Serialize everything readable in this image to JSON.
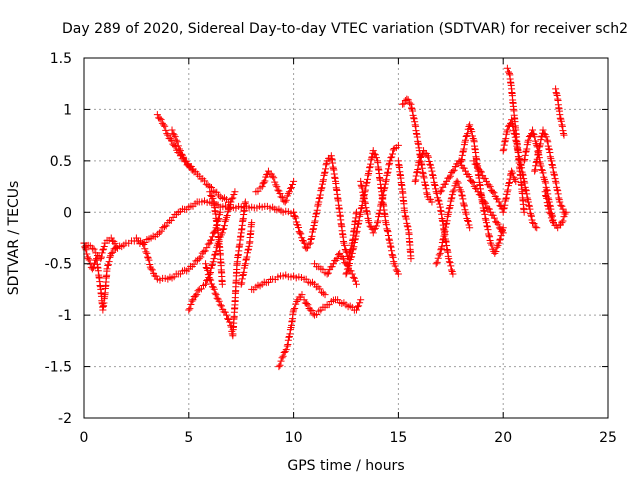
{
  "chart_data": {
    "type": "scatter",
    "title": "Day 289 of 2020, Sidereal Day-to-day VTEC variation (SDTVAR) for receiver sch2",
    "xlabel": "GPS time / hours",
    "ylabel": "SDTVAR / TECUs",
    "xlim": [
      0,
      25
    ],
    "ylim": [
      -2,
      1.5
    ],
    "x_ticks": [
      0,
      5,
      10,
      15,
      20,
      25
    ],
    "x_tick_labels": [
      "0",
      "5",
      "10",
      "15",
      "20",
      "25"
    ],
    "y_ticks": [
      -2,
      -1.5,
      -1,
      -0.5,
      0,
      0.5,
      1,
      1.5
    ],
    "y_tick_labels": [
      "-2",
      "-1.5",
      "-1",
      "-0.5",
      "0",
      "0.5",
      "1",
      "1.5"
    ],
    "grid": true,
    "marker": "plus",
    "series_color": "#ff0000",
    "tracks": [
      {
        "name": "track-1",
        "points": [
          [
            0,
            -0.3
          ],
          [
            0.4,
            -0.35
          ],
          [
            0.8,
            -0.45
          ],
          [
            1.0,
            -0.3
          ],
          [
            1.3,
            -0.25
          ],
          [
            1.6,
            -0.35
          ],
          [
            2.0,
            -0.3
          ],
          [
            2.4,
            -0.28
          ],
          [
            2.8,
            -0.3
          ],
          [
            3.2,
            -0.25
          ],
          [
            3.6,
            -0.2
          ],
          [
            4.0,
            -0.1
          ],
          [
            4.5,
            0.0
          ],
          [
            5.0,
            0.05
          ],
          [
            5.5,
            0.1
          ],
          [
            6.0,
            0.1
          ],
          [
            6.5,
            0.05
          ],
          [
            7.0,
            0.05
          ],
          [
            7.5,
            0.05
          ],
          [
            8.0,
            0.05
          ],
          [
            8.5,
            0.05
          ],
          [
            9.0,
            0.05
          ],
          [
            9.5,
            0.0
          ],
          [
            10.0,
            0.0
          ]
        ]
      },
      {
        "name": "track-2",
        "points": [
          [
            0,
            -0.3
          ],
          [
            0.2,
            -0.45
          ],
          [
            0.4,
            -0.55
          ],
          [
            0.6,
            -0.45
          ],
          [
            0.8,
            -0.75
          ],
          [
            0.9,
            -0.95
          ],
          [
            1.0,
            -0.8
          ],
          [
            1.1,
            -0.55
          ],
          [
            1.3,
            -0.4
          ],
          [
            1.5,
            -0.35
          ]
        ]
      },
      {
        "name": "track-3",
        "points": [
          [
            3.5,
            0.95
          ],
          [
            3.8,
            0.85
          ],
          [
            4.0,
            0.75
          ],
          [
            4.3,
            0.65
          ],
          [
            4.6,
            0.55
          ],
          [
            5.0,
            0.45
          ],
          [
            5.5,
            0.35
          ],
          [
            6.0,
            0.25
          ],
          [
            6.5,
            0.15
          ],
          [
            7.0,
            0.1
          ]
        ]
      },
      {
        "name": "track-4",
        "points": [
          [
            4.2,
            0.8
          ],
          [
            4.4,
            0.7
          ],
          [
            4.6,
            0.6
          ],
          [
            4.8,
            0.5
          ],
          [
            5.2,
            0.42
          ]
        ]
      },
      {
        "name": "track-5",
        "points": [
          [
            2.5,
            -0.25
          ],
          [
            2.8,
            -0.3
          ],
          [
            3.0,
            -0.4
          ],
          [
            3.2,
            -0.55
          ],
          [
            3.5,
            -0.65
          ],
          [
            4.0,
            -0.65
          ],
          [
            4.5,
            -0.6
          ],
          [
            5.0,
            -0.55
          ],
          [
            5.5,
            -0.45
          ],
          [
            6.0,
            -0.3
          ],
          [
            6.3,
            -0.15
          ],
          [
            6.5,
            0.0
          ]
        ]
      },
      {
        "name": "track-6",
        "points": [
          [
            5.0,
            -0.95
          ],
          [
            5.2,
            -0.85
          ],
          [
            5.5,
            -0.75
          ],
          [
            5.8,
            -0.7
          ],
          [
            6.0,
            -0.6
          ],
          [
            6.2,
            -0.45
          ],
          [
            6.4,
            -0.3
          ],
          [
            6.6,
            -0.2
          ],
          [
            6.8,
            -0.05
          ],
          [
            7.0,
            0.1
          ],
          [
            7.2,
            0.2
          ]
        ]
      },
      {
        "name": "track-7",
        "points": [
          [
            5.8,
            -0.5
          ],
          [
            6.0,
            -0.65
          ],
          [
            6.3,
            -0.8
          ],
          [
            6.5,
            -0.9
          ],
          [
            6.8,
            -1.0
          ],
          [
            7.0,
            -1.1
          ],
          [
            7.1,
            -1.2
          ],
          [
            7.2,
            -0.9
          ],
          [
            7.3,
            -0.5
          ],
          [
            7.5,
            -0.2
          ],
          [
            7.7,
            0.1
          ]
        ]
      },
      {
        "name": "track-8",
        "points": [
          [
            6.0,
            0.2
          ],
          [
            6.2,
            0.1
          ],
          [
            6.4,
            -0.2
          ],
          [
            6.5,
            -0.4
          ],
          [
            6.6,
            -0.7
          ]
        ]
      },
      {
        "name": "track-9",
        "points": [
          [
            7.5,
            -0.7
          ],
          [
            7.7,
            -0.5
          ],
          [
            7.9,
            -0.3
          ],
          [
            8.0,
            -0.1
          ]
        ]
      },
      {
        "name": "track-10",
        "points": [
          [
            8.2,
            0.2
          ],
          [
            8.5,
            0.25
          ],
          [
            8.8,
            0.4
          ],
          [
            9.0,
            0.35
          ],
          [
            9.2,
            0.25
          ],
          [
            9.4,
            0.15
          ],
          [
            9.6,
            0.1
          ],
          [
            9.8,
            0.2
          ],
          [
            10.0,
            0.3
          ]
        ]
      },
      {
        "name": "track-11",
        "points": [
          [
            8.0,
            -0.75
          ],
          [
            8.5,
            -0.7
          ],
          [
            9.0,
            -0.65
          ],
          [
            9.5,
            -0.62
          ],
          [
            10.0,
            -0.62
          ],
          [
            10.5,
            -0.65
          ],
          [
            11.0,
            -0.7
          ],
          [
            11.5,
            -0.8
          ]
        ]
      },
      {
        "name": "track-12",
        "points": [
          [
            9.3,
            -1.5
          ],
          [
            9.5,
            -1.4
          ],
          [
            9.7,
            -1.3
          ],
          [
            9.9,
            -1.1
          ],
          [
            10.0,
            -0.95
          ],
          [
            10.2,
            -0.85
          ],
          [
            10.4,
            -0.8
          ]
        ]
      },
      {
        "name": "track-13",
        "points": [
          [
            10.5,
            -0.85
          ],
          [
            10.8,
            -0.95
          ],
          [
            11.0,
            -1.0
          ],
          [
            11.3,
            -0.95
          ],
          [
            11.6,
            -0.9
          ],
          [
            12.0,
            -0.85
          ],
          [
            12.5,
            -0.9
          ],
          [
            13.0,
            -0.95
          ],
          [
            13.2,
            -0.85
          ]
        ]
      },
      {
        "name": "track-14",
        "points": [
          [
            10.0,
            0.0
          ],
          [
            10.3,
            -0.2
          ],
          [
            10.6,
            -0.35
          ],
          [
            10.8,
            -0.3
          ],
          [
            11.0,
            -0.1
          ],
          [
            11.2,
            0.1
          ],
          [
            11.4,
            0.3
          ],
          [
            11.6,
            0.5
          ],
          [
            11.8,
            0.55
          ],
          [
            12.0,
            0.3
          ],
          [
            12.2,
            0.0
          ],
          [
            12.4,
            -0.3
          ],
          [
            12.6,
            -0.45
          ],
          [
            12.8,
            -0.3
          ],
          [
            13.0,
            0.0
          ]
        ]
      },
      {
        "name": "track-15",
        "points": [
          [
            11.0,
            -0.5
          ],
          [
            11.3,
            -0.55
          ],
          [
            11.6,
            -0.6
          ],
          [
            11.9,
            -0.5
          ],
          [
            12.2,
            -0.4
          ],
          [
            12.5,
            -0.5
          ],
          [
            12.8,
            -0.6
          ],
          [
            13.0,
            -0.7
          ]
        ]
      },
      {
        "name": "track-16",
        "points": [
          [
            12.5,
            -0.6
          ],
          [
            12.8,
            -0.4
          ],
          [
            13.0,
            -0.2
          ],
          [
            13.2,
            0.0
          ],
          [
            13.4,
            0.2
          ],
          [
            13.6,
            0.4
          ],
          [
            13.8,
            0.6
          ],
          [
            14.0,
            0.5
          ],
          [
            14.2,
            0.2
          ],
          [
            14.4,
            -0.1
          ],
          [
            14.6,
            -0.3
          ],
          [
            14.8,
            -0.5
          ],
          [
            15.0,
            -0.6
          ]
        ]
      },
      {
        "name": "track-17",
        "points": [
          [
            13.2,
            0.3
          ],
          [
            13.4,
            0.1
          ],
          [
            13.6,
            -0.1
          ],
          [
            13.8,
            -0.2
          ],
          [
            14.0,
            -0.1
          ],
          [
            14.2,
            0.1
          ],
          [
            14.4,
            0.3
          ],
          [
            14.6,
            0.5
          ],
          [
            14.8,
            0.62
          ],
          [
            15.0,
            0.65
          ]
        ]
      },
      {
        "name": "track-18",
        "points": [
          [
            15.0,
            0.5
          ],
          [
            15.2,
            0.2
          ],
          [
            15.3,
            0.0
          ],
          [
            15.5,
            -0.2
          ],
          [
            15.6,
            -0.45
          ]
        ]
      },
      {
        "name": "track-19",
        "points": [
          [
            15.2,
            1.05
          ],
          [
            15.4,
            1.1
          ],
          [
            15.6,
            1.05
          ],
          [
            15.8,
            0.85
          ],
          [
            16.0,
            0.6
          ],
          [
            16.2,
            0.35
          ],
          [
            16.4,
            0.15
          ],
          [
            16.6,
            0.1
          ]
        ]
      },
      {
        "name": "track-20",
        "points": [
          [
            15.8,
            0.3
          ],
          [
            16.0,
            0.5
          ],
          [
            16.2,
            0.6
          ],
          [
            16.4,
            0.55
          ],
          [
            16.6,
            0.4
          ],
          [
            16.8,
            0.2
          ],
          [
            17.0,
            0.05
          ],
          [
            17.2,
            -0.2
          ],
          [
            17.4,
            -0.45
          ],
          [
            17.6,
            -0.6
          ]
        ]
      },
      {
        "name": "track-21",
        "points": [
          [
            16.8,
            -0.5
          ],
          [
            17.0,
            -0.4
          ],
          [
            17.2,
            -0.2
          ],
          [
            17.4,
            0.0
          ],
          [
            17.6,
            0.2
          ],
          [
            17.8,
            0.3
          ],
          [
            18.0,
            0.2
          ],
          [
            18.2,
            0.0
          ],
          [
            18.4,
            -0.15
          ]
        ]
      },
      {
        "name": "track-22",
        "points": [
          [
            17.0,
            0.2
          ],
          [
            17.3,
            0.3
          ],
          [
            17.6,
            0.4
          ],
          [
            17.9,
            0.5
          ],
          [
            18.2,
            0.4
          ],
          [
            18.5,
            0.3
          ],
          [
            18.8,
            0.2
          ],
          [
            19.1,
            0.1
          ],
          [
            19.4,
            0.0
          ],
          [
            19.7,
            -0.1
          ],
          [
            20.0,
            -0.2
          ]
        ]
      },
      {
        "name": "track-23",
        "points": [
          [
            18.0,
            0.5
          ],
          [
            18.2,
            0.7
          ],
          [
            18.4,
            0.85
          ],
          [
            18.6,
            0.7
          ],
          [
            18.8,
            0.4
          ],
          [
            19.0,
            0.1
          ],
          [
            19.2,
            -0.1
          ],
          [
            19.4,
            -0.3
          ],
          [
            19.6,
            -0.4
          ],
          [
            19.8,
            -0.3
          ],
          [
            20.0,
            -0.15
          ]
        ]
      },
      {
        "name": "track-24",
        "points": [
          [
            18.6,
            0.5
          ],
          [
            18.9,
            0.4
          ],
          [
            19.2,
            0.3
          ],
          [
            19.5,
            0.2
          ],
          [
            19.8,
            0.1
          ],
          [
            20.0,
            0.0
          ],
          [
            20.2,
            0.2
          ],
          [
            20.4,
            0.4
          ],
          [
            20.6,
            0.3
          ]
        ]
      },
      {
        "name": "track-25",
        "points": [
          [
            20.2,
            1.4
          ],
          [
            20.3,
            1.35
          ],
          [
            20.4,
            1.2
          ],
          [
            20.5,
            1.0
          ],
          [
            20.6,
            0.8
          ],
          [
            20.7,
            0.6
          ],
          [
            20.8,
            0.4
          ],
          [
            20.9,
            0.2
          ],
          [
            21.0,
            0.0
          ]
        ]
      },
      {
        "name": "track-26",
        "points": [
          [
            20.0,
            0.6
          ],
          [
            20.2,
            0.8
          ],
          [
            20.4,
            0.9
          ],
          [
            20.6,
            0.7
          ],
          [
            20.8,
            0.5
          ],
          [
            21.0,
            0.3
          ],
          [
            21.2,
            0.1
          ],
          [
            21.4,
            -0.1
          ],
          [
            21.6,
            -0.15
          ]
        ]
      },
      {
        "name": "track-27",
        "points": [
          [
            21.0,
            0.5
          ],
          [
            21.2,
            0.7
          ],
          [
            21.4,
            0.8
          ],
          [
            21.6,
            0.65
          ],
          [
            21.8,
            0.45
          ],
          [
            22.0,
            0.3
          ],
          [
            22.2,
            0.1
          ],
          [
            22.4,
            -0.1
          ]
        ]
      },
      {
        "name": "track-28",
        "points": [
          [
            21.5,
            0.4
          ],
          [
            21.7,
            0.6
          ],
          [
            21.9,
            0.8
          ],
          [
            22.1,
            0.7
          ],
          [
            22.3,
            0.5
          ],
          [
            22.5,
            0.3
          ],
          [
            22.7,
            0.1
          ],
          [
            22.9,
            0.0
          ]
        ]
      },
      {
        "name": "track-29",
        "points": [
          [
            22.5,
            1.2
          ],
          [
            22.6,
            1.1
          ],
          [
            22.7,
            0.95
          ],
          [
            22.8,
            0.85
          ],
          [
            22.9,
            0.75
          ]
        ]
      },
      {
        "name": "track-30",
        "points": [
          [
            22.0,
            0.2
          ],
          [
            22.2,
            0.0
          ],
          [
            22.4,
            -0.1
          ],
          [
            22.6,
            -0.15
          ],
          [
            22.8,
            -0.1
          ],
          [
            23.0,
            0.0
          ]
        ]
      }
    ]
  }
}
